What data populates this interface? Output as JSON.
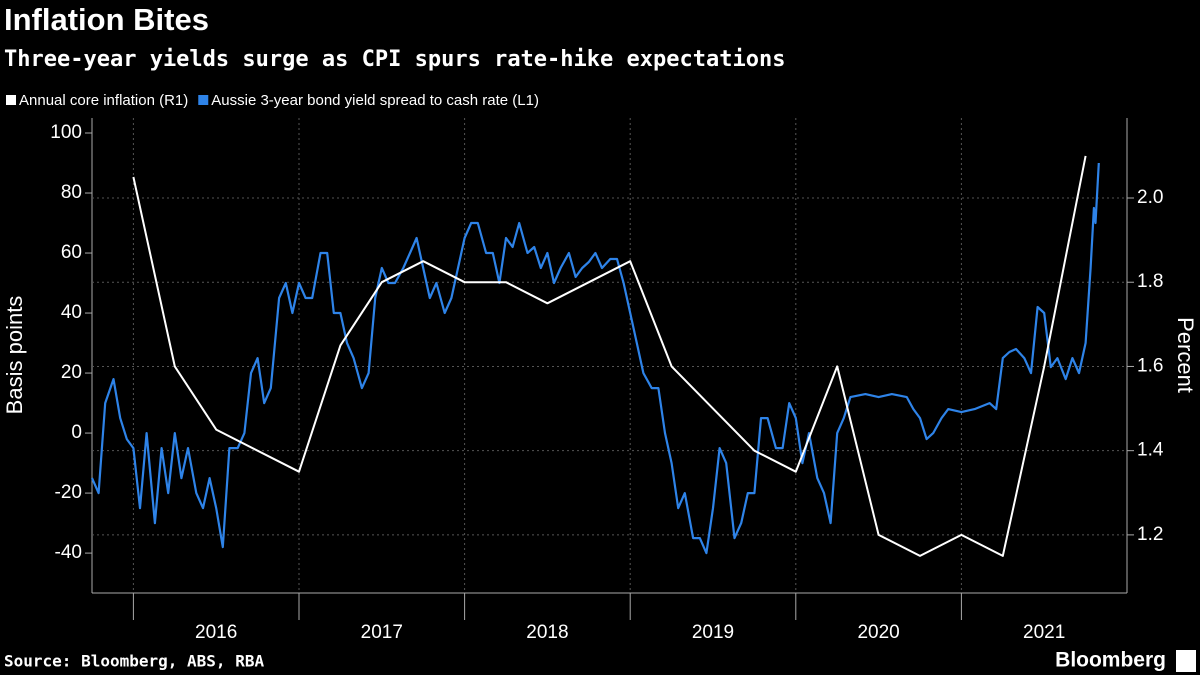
{
  "chart_data": {
    "type": "line",
    "title": "Inflation Bites",
    "subtitle": "Three-year yields surge as CPI spurs rate-hike expectations",
    "source": "Source: Bloomberg, ABS, RBA",
    "brand": "Bloomberg",
    "y_label": "Basis points",
    "y2_label": "Percent",
    "xlim": [
      2015.75,
      2022
    ],
    "xticks": [
      2016,
      2017,
      2018,
      2019,
      2020,
      2021
    ],
    "ylim": [
      -53.3,
      105
    ],
    "yticks": [
      -40,
      -20,
      0,
      20,
      40,
      60,
      80,
      100
    ],
    "y2lim": [
      1.062,
      2.19
    ],
    "y2ticks": [
      1.2,
      1.4,
      1.6,
      1.8,
      {
        "value": 2,
        "label": "2.0"
      }
    ],
    "grid": true,
    "series": [
      {
        "name": "Annual core inflation (R1)",
        "color": "#ffffff",
        "axis": "y2",
        "x": [
          2016.0,
          2016.25,
          2016.5,
          2017.0,
          2017.25,
          2017.5,
          2017.75,
          2018.0,
          2018.25,
          2018.5,
          2019.0,
          2019.25,
          2019.5,
          2019.75,
          2020.0,
          2020.25,
          2020.5,
          2020.75,
          2021.0,
          2021.25,
          2021.5,
          2021.75
        ],
        "values": [
          2.05,
          1.6,
          1.45,
          1.35,
          1.65,
          1.8,
          1.85,
          1.8,
          1.8,
          1.75,
          1.85,
          1.6,
          1.5,
          1.4,
          1.35,
          1.6,
          1.2,
          1.15,
          1.2,
          1.15,
          1.6,
          2.1
        ]
      },
      {
        "name": "Aussie 3-year bond yield spread to cash rate (L1)",
        "color": "#2e83e8",
        "axis": "y",
        "x": [
          2015.75,
          2015.79,
          2015.83,
          2015.88,
          2015.92,
          2015.96,
          2016.0,
          2016.04,
          2016.08,
          2016.13,
          2016.17,
          2016.21,
          2016.25,
          2016.29,
          2016.33,
          2016.38,
          2016.42,
          2016.46,
          2016.5,
          2016.54,
          2016.58,
          2016.63,
          2016.67,
          2016.71,
          2016.75,
          2016.79,
          2016.83,
          2016.88,
          2016.92,
          2016.96,
          2017.0,
          2017.04,
          2017.08,
          2017.13,
          2017.17,
          2017.21,
          2017.25,
          2017.29,
          2017.33,
          2017.38,
          2017.42,
          2017.46,
          2017.5,
          2017.54,
          2017.58,
          2017.63,
          2017.67,
          2017.71,
          2017.75,
          2017.79,
          2017.83,
          2017.88,
          2017.92,
          2017.96,
          2018.0,
          2018.04,
          2018.08,
          2018.13,
          2018.17,
          2018.21,
          2018.25,
          2018.29,
          2018.33,
          2018.38,
          2018.42,
          2018.46,
          2018.5,
          2018.54,
          2018.58,
          2018.63,
          2018.67,
          2018.71,
          2018.75,
          2018.79,
          2018.83,
          2018.88,
          2018.92,
          2018.96,
          2019.0,
          2019.04,
          2019.08,
          2019.13,
          2019.17,
          2019.21,
          2019.25,
          2019.29,
          2019.33,
          2019.38,
          2019.42,
          2019.46,
          2019.5,
          2019.54,
          2019.58,
          2019.63,
          2019.67,
          2019.71,
          2019.75,
          2019.79,
          2019.83,
          2019.88,
          2019.92,
          2019.96,
          2020.0,
          2020.04,
          2020.08,
          2020.13,
          2020.17,
          2020.21,
          2020.25,
          2020.29,
          2020.33,
          2020.42,
          2020.5,
          2020.58,
          2020.67,
          2020.71,
          2020.75,
          2020.79,
          2020.83,
          2020.88,
          2020.92,
          2021.0,
          2021.08,
          2021.17,
          2021.21,
          2021.25,
          2021.29,
          2021.33,
          2021.38,
          2021.42,
          2021.46,
          2021.5,
          2021.54,
          2021.58,
          2021.63,
          2021.67,
          2021.71,
          2021.75,
          2021.78,
          2021.8,
          2021.81,
          2021.83
        ],
        "values": [
          -15,
          -20,
          10,
          18,
          5,
          -2,
          -5,
          -25,
          0,
          -30,
          -5,
          -20,
          0,
          -15,
          -5,
          -20,
          -25,
          -15,
          -25,
          -38,
          -5,
          -5,
          0,
          20,
          25,
          10,
          15,
          45,
          50,
          40,
          50,
          45,
          45,
          60,
          60,
          40,
          40,
          30,
          25,
          15,
          20,
          45,
          55,
          50,
          50,
          55,
          60,
          65,
          55,
          45,
          50,
          40,
          45,
          55,
          65,
          70,
          70,
          60,
          60,
          50,
          65,
          62,
          70,
          60,
          62,
          55,
          60,
          50,
          55,
          60,
          52,
          55,
          57,
          60,
          55,
          58,
          58,
          50,
          40,
          30,
          20,
          15,
          15,
          0,
          -10,
          -25,
          -20,
          -35,
          -35,
          -40,
          -25,
          -5,
          -10,
          -35,
          -30,
          -20,
          -20,
          5,
          5,
          -5,
          -5,
          10,
          5,
          -10,
          0,
          -15,
          -20,
          -30,
          0,
          5,
          12,
          13,
          12,
          13,
          12,
          8,
          5,
          -2,
          0,
          5,
          8,
          7,
          8,
          10,
          8,
          25,
          27,
          28,
          25,
          20,
          42,
          40,
          22,
          25,
          18,
          25,
          20,
          30,
          55,
          75,
          70,
          90
        ]
      }
    ]
  }
}
